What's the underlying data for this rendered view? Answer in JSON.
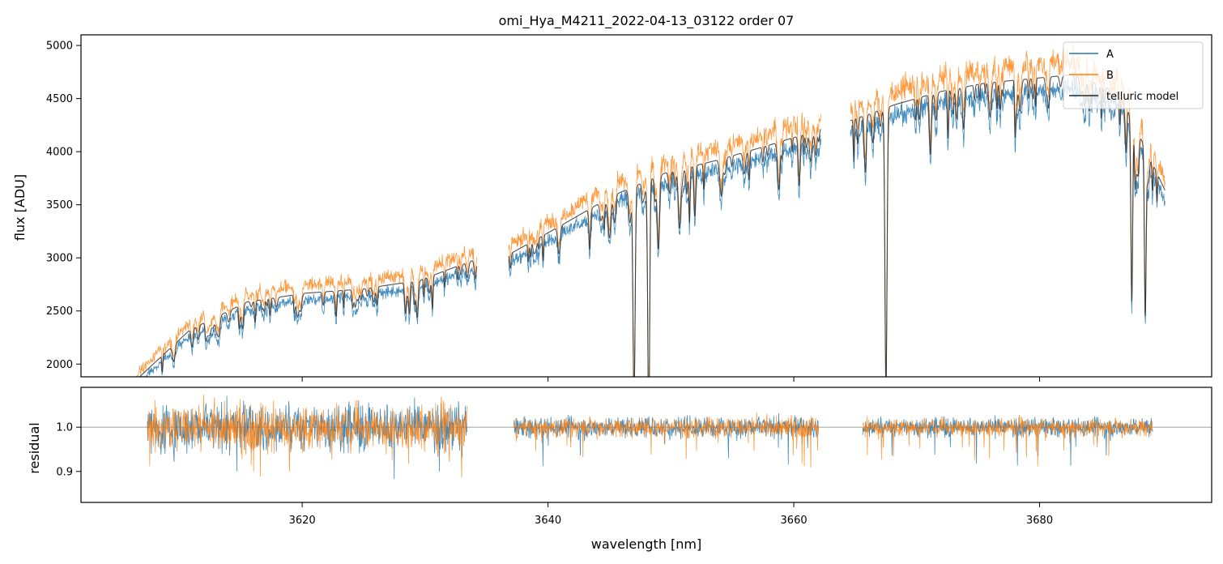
{
  "chart_data": {
    "type": "line",
    "title": "omi_Hya_M4211_2022-04-13_03122  order 07",
    "xlabel": "wavelength [nm]",
    "xlim": [
      3602,
      3694
    ],
    "xticks": [
      3620,
      3640,
      3660,
      3680
    ],
    "xtick_labels": [
      "3620",
      "3640",
      "3660",
      "3680"
    ],
    "top_panel": {
      "ylabel": "flux [ADU]",
      "ylim": [
        1880,
        5100
      ],
      "yticks": [
        2000,
        2500,
        3000,
        3500,
        4000,
        4500,
        5000
      ],
      "ytick_labels": [
        "2000",
        "2500",
        "3000",
        "3500",
        "4000",
        "4500",
        "5000"
      ],
      "segments": [
        {
          "start": 3606.2,
          "end": 3634.2,
          "base": [
            1800,
            2300,
            2560,
            2640,
            2680,
            2760,
            2960
          ]
        },
        {
          "start": 3636.8,
          "end": 3662.2,
          "base": [
            3000,
            3270,
            3550,
            3760,
            3880,
            4020,
            4170
          ]
        },
        {
          "start": 3664.6,
          "end": 3690.2,
          "base": [
            4250,
            4400,
            4520,
            4600,
            4640,
            4680,
            4500,
            3600
          ]
        }
      ],
      "series": [
        {
          "name": "A",
          "color": "#1f77b4"
        },
        {
          "name": "B",
          "color": "#ff7f0e"
        },
        {
          "name": "telluric model",
          "color": "#262626"
        }
      ]
    },
    "bottom_panel": {
      "ylabel": "residual",
      "ylim": [
        0.83,
        1.09
      ],
      "yticks": [
        0.9,
        1.0
      ],
      "ytick_labels": [
        "0.9",
        "1.0"
      ],
      "reference_line": 1.0,
      "segments": [
        {
          "start": 3607.4,
          "end": 3633.4,
          "scatter": 0.045
        },
        {
          "start": 3637.2,
          "end": 3662.0,
          "scatter": 0.02
        },
        {
          "start": 3665.6,
          "end": 3689.2,
          "scatter": 0.018
        }
      ],
      "series": [
        {
          "name": "A",
          "color": "#1f77b4"
        },
        {
          "name": "B",
          "color": "#ff7f0e"
        }
      ]
    },
    "legend": {
      "placement": "top-right",
      "entries": [
        "A",
        "B",
        "telluric model"
      ]
    }
  }
}
